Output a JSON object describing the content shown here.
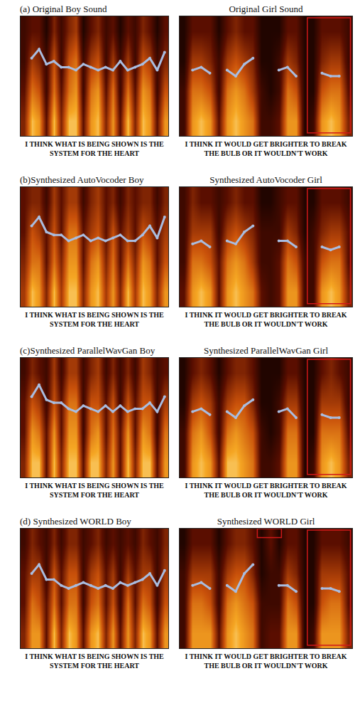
{
  "chart_data": [
    {
      "type": "heatmap",
      "title": "(a) Original Boy Sound",
      "caption": "I THINK WHAT IS BEING SHOWN IS THE SYSTEM FOR THE HEART",
      "xlim": [
        0,
        20
      ],
      "ylim": [
        0,
        4
      ],
      "zlim": [
        0,
        10
      ],
      "tick_labels": false,
      "color": "#a9bde0",
      "cells": [
        [
          4,
          9,
          8,
          3,
          9,
          4,
          9,
          9,
          3,
          8,
          9,
          4,
          8,
          3,
          9,
          4,
          9,
          8,
          3,
          8
        ],
        [
          3,
          7,
          6,
          2,
          7,
          3,
          7,
          8,
          2,
          7,
          8,
          3,
          7,
          2,
          7,
          3,
          8,
          7,
          2,
          6
        ],
        [
          2,
          5,
          4,
          2,
          6,
          2,
          6,
          7,
          2,
          5,
          6,
          2,
          5,
          2,
          5,
          2,
          6,
          5,
          2,
          4
        ],
        [
          2,
          3,
          3,
          1,
          4,
          2,
          4,
          5,
          1,
          3,
          4,
          2,
          3,
          1,
          3,
          2,
          4,
          3,
          1,
          3
        ]
      ],
      "pitch": [
        null,
        2.6,
        2.9,
        2.4,
        2.5,
        2.3,
        2.3,
        2.2,
        2.4,
        2.3,
        2.2,
        2.3,
        2.2,
        2.5,
        2.2,
        2.3,
        2.4,
        2.6,
        2.2,
        2.8
      ],
      "highlights": []
    },
    {
      "type": "heatmap",
      "title": "Original Girl Sound",
      "caption": "I THINK IT WOULD GET BRIGHTER TO BREAK THE BULB OR IT WOULDN'T WORK",
      "xlim": [
        0,
        20
      ],
      "ylim": [
        0,
        4
      ],
      "zlim": [
        0,
        10
      ],
      "tick_labels": false,
      "color": "#a9bde0",
      "cells": [
        [
          2,
          8,
          9,
          8,
          3,
          8,
          9,
          8,
          7,
          2,
          2,
          3,
          8,
          8,
          1,
          2,
          8,
          9,
          8,
          4
        ],
        [
          2,
          7,
          7,
          6,
          2,
          7,
          8,
          7,
          5,
          2,
          1,
          2,
          7,
          6,
          1,
          1,
          6,
          7,
          7,
          3
        ],
        [
          1,
          5,
          5,
          4,
          2,
          5,
          6,
          5,
          4,
          1,
          1,
          2,
          5,
          4,
          1,
          1,
          4,
          5,
          5,
          2
        ],
        [
          1,
          3,
          3,
          3,
          1,
          3,
          4,
          3,
          3,
          1,
          1,
          1,
          3,
          3,
          1,
          1,
          3,
          3,
          3,
          2
        ]
      ],
      "pitch": [
        null,
        2.2,
        2.3,
        2.1,
        null,
        2.2,
        2.0,
        2.4,
        2.6,
        null,
        null,
        2.2,
        2.3,
        2.0,
        null,
        null,
        2.1,
        2.0,
        2.0,
        null
      ],
      "highlights": [
        [
          14.8,
          19.8,
          0.1,
          3.95
        ]
      ]
    },
    {
      "type": "heatmap",
      "title": "(b)Synthesized AutoVocoder Boy",
      "caption": "I THINK WHAT IS BEING SHOWN IS THE SYSTEM FOR THE HEART",
      "xlim": [
        0,
        20
      ],
      "ylim": [
        0,
        4
      ],
      "zlim": [
        0,
        10
      ],
      "tick_labels": false,
      "color": "#a9bde0",
      "cells": [
        [
          5,
          9,
          8,
          4,
          9,
          5,
          9,
          9,
          4,
          8,
          9,
          5,
          8,
          4,
          9,
          5,
          9,
          8,
          4,
          8
        ],
        [
          4,
          7,
          7,
          3,
          7,
          4,
          8,
          8,
          3,
          7,
          8,
          4,
          7,
          3,
          7,
          4,
          8,
          7,
          3,
          6
        ],
        [
          3,
          6,
          5,
          3,
          6,
          3,
          7,
          7,
          3,
          5,
          6,
          3,
          6,
          3,
          5,
          3,
          6,
          5,
          3,
          5
        ],
        [
          3,
          4,
          4,
          2,
          5,
          3,
          5,
          5,
          2,
          4,
          5,
          3,
          4,
          2,
          4,
          3,
          4,
          4,
          2,
          4
        ]
      ],
      "pitch": [
        null,
        2.7,
        3.0,
        2.5,
        2.4,
        2.4,
        2.2,
        2.3,
        2.4,
        2.2,
        2.3,
        2.2,
        2.3,
        2.4,
        2.2,
        2.2,
        2.4,
        2.7,
        2.3,
        3.0
      ],
      "highlights": []
    },
    {
      "type": "heatmap",
      "title": "Synthesized AutoVocoder Girl",
      "caption": "I THINK IT WOULD GET BRIGHTER TO BREAK THE BULB OR IT WOULDN'T WORK",
      "xlim": [
        0,
        20
      ],
      "ylim": [
        0,
        4
      ],
      "zlim": [
        0,
        10
      ],
      "tick_labels": false,
      "color": "#a9bde0",
      "cells": [
        [
          3,
          8,
          9,
          8,
          3,
          8,
          9,
          8,
          7,
          3,
          2,
          3,
          8,
          8,
          2,
          2,
          8,
          9,
          8,
          4
        ],
        [
          2,
          7,
          7,
          6,
          3,
          7,
          8,
          7,
          5,
          2,
          2,
          3,
          7,
          6,
          2,
          2,
          6,
          7,
          7,
          3
        ],
        [
          2,
          5,
          5,
          5,
          2,
          5,
          6,
          5,
          4,
          2,
          2,
          2,
          5,
          4,
          1,
          2,
          4,
          5,
          5,
          3
        ],
        [
          2,
          4,
          3,
          3,
          2,
          3,
          4,
          3,
          3,
          1,
          1,
          2,
          3,
          3,
          1,
          1,
          3,
          3,
          3,
          2
        ]
      ],
      "pitch": [
        null,
        2.1,
        2.2,
        2.0,
        null,
        2.2,
        2.1,
        2.5,
        2.7,
        null,
        null,
        2.2,
        2.2,
        2.0,
        null,
        null,
        2.0,
        1.9,
        2.0,
        null
      ],
      "highlights": [
        [
          14.8,
          19.8,
          0.1,
          3.95
        ]
      ]
    },
    {
      "type": "heatmap",
      "title": "(c)Synthesized ParallelWavGan Boy",
      "caption": "I THINK WHAT IS BEING SHOWN IS THE SYSTEM FOR THE HEART",
      "xlim": [
        0,
        20
      ],
      "ylim": [
        0,
        4
      ],
      "zlim": [
        0,
        10
      ],
      "tick_labels": false,
      "color": "#a9bde0",
      "cells": [
        [
          4,
          9,
          9,
          3,
          9,
          4,
          9,
          9,
          3,
          9,
          9,
          4,
          8,
          3,
          9,
          4,
          9,
          9,
          3,
          8
        ],
        [
          3,
          8,
          7,
          3,
          8,
          3,
          8,
          8,
          2,
          7,
          8,
          3,
          7,
          3,
          8,
          3,
          8,
          7,
          2,
          7
        ],
        [
          3,
          6,
          5,
          2,
          6,
          3,
          7,
          7,
          2,
          6,
          6,
          3,
          6,
          2,
          6,
          3,
          6,
          6,
          2,
          5
        ],
        [
          2,
          4,
          3,
          2,
          5,
          2,
          5,
          5,
          2,
          4,
          5,
          2,
          4,
          2,
          4,
          2,
          5,
          4,
          2,
          3
        ]
      ],
      "pitch": [
        null,
        2.7,
        3.1,
        2.6,
        2.5,
        2.5,
        2.3,
        2.2,
        2.4,
        2.3,
        2.2,
        2.4,
        2.2,
        2.4,
        2.2,
        2.3,
        2.3,
        2.5,
        2.2,
        2.7
      ],
      "highlights": []
    },
    {
      "type": "heatmap",
      "title": "Synthesized ParallelWavGan Girl",
      "caption": "I THINK IT WOULD GET BRIGHTER TO BREAK THE BULB OR IT WOULDN'T WORK",
      "xlim": [
        0,
        20
      ],
      "ylim": [
        0,
        4
      ],
      "zlim": [
        0,
        10
      ],
      "tick_labels": false,
      "color": "#a9bde0",
      "cells": [
        [
          2,
          8,
          9,
          8,
          3,
          9,
          9,
          8,
          7,
          2,
          2,
          3,
          8,
          8,
          1,
          2,
          8,
          9,
          8,
          4
        ],
        [
          2,
          7,
          8,
          6,
          2,
          7,
          8,
          7,
          6,
          2,
          1,
          2,
          7,
          7,
          1,
          1,
          7,
          7,
          7,
          3
        ],
        [
          1,
          5,
          6,
          5,
          2,
          5,
          6,
          6,
          4,
          1,
          1,
          2,
          5,
          5,
          1,
          1,
          5,
          5,
          5,
          2
        ],
        [
          1,
          3,
          4,
          3,
          1,
          3,
          4,
          4,
          3,
          1,
          1,
          1,
          3,
          3,
          1,
          1,
          3,
          4,
          3,
          2
        ]
      ],
      "pitch": [
        null,
        2.2,
        2.3,
        2.1,
        null,
        2.2,
        2.0,
        2.4,
        2.6,
        null,
        null,
        2.2,
        2.3,
        2.0,
        null,
        null,
        2.1,
        2.0,
        2.0,
        null
      ],
      "highlights": [
        [
          14.8,
          19.8,
          0.1,
          3.95
        ]
      ]
    },
    {
      "type": "heatmap",
      "title": "(d) Synthesized WORLD Boy",
      "caption": "I THINK WHAT IS BEING SHOWN IS THE SYSTEM FOR THE HEART",
      "xlim": [
        0,
        20
      ],
      "ylim": [
        0,
        4
      ],
      "zlim": [
        0,
        10
      ],
      "tick_labels": false,
      "color": "#a9bde0",
      "cells": [
        [
          4,
          8,
          8,
          3,
          9,
          4,
          9,
          8,
          3,
          8,
          9,
          4,
          8,
          3,
          8,
          4,
          9,
          8,
          3,
          8
        ],
        [
          3,
          7,
          6,
          3,
          7,
          3,
          7,
          7,
          2,
          6,
          7,
          3,
          6,
          2,
          7,
          3,
          7,
          6,
          2,
          6
        ],
        [
          3,
          5,
          5,
          2,
          6,
          3,
          6,
          6,
          2,
          5,
          6,
          3,
          5,
          2,
          5,
          3,
          5,
          5,
          2,
          5
        ],
        [
          2,
          4,
          3,
          2,
          4,
          2,
          4,
          4,
          2,
          3,
          4,
          2,
          3,
          2,
          3,
          2,
          4,
          3,
          2,
          4
        ]
      ],
      "pitch": [
        null,
        2.5,
        2.8,
        2.3,
        2.3,
        2.1,
        2.0,
        2.1,
        2.2,
        2.1,
        2.0,
        2.1,
        2.0,
        2.2,
        2.1,
        2.2,
        2.3,
        2.5,
        2.1,
        2.6
      ],
      "highlights": []
    },
    {
      "type": "heatmap",
      "title": "Synthesized WORLD Girl",
      "caption": "I THINK IT WOULD GET BRIGHTER TO BREAK THE BULB OR IT WOULDN'T WORK",
      "xlim": [
        0,
        20
      ],
      "ylim": [
        0,
        4
      ],
      "zlim": [
        0,
        10
      ],
      "tick_labels": false,
      "color": "#a9bde0",
      "cells": [
        [
          2,
          8,
          8,
          8,
          3,
          8,
          9,
          8,
          7,
          2,
          3,
          3,
          8,
          8,
          1,
          2,
          8,
          8,
          8,
          4
        ],
        [
          2,
          7,
          7,
          6,
          2,
          7,
          8,
          7,
          6,
          2,
          2,
          2,
          7,
          6,
          1,
          1,
          6,
          7,
          7,
          3
        ],
        [
          2,
          5,
          5,
          5,
          2,
          5,
          6,
          6,
          4,
          1,
          2,
          2,
          5,
          4,
          1,
          1,
          5,
          5,
          5,
          3
        ],
        [
          1,
          3,
          3,
          3,
          1,
          3,
          4,
          4,
          3,
          1,
          3,
          1,
          3,
          3,
          1,
          1,
          3,
          3,
          3,
          2
        ]
      ],
      "pitch": [
        null,
        2.1,
        2.2,
        2.0,
        null,
        2.1,
        1.9,
        2.5,
        2.8,
        null,
        null,
        2.1,
        2.1,
        1.9,
        null,
        null,
        2.0,
        2.0,
        1.9,
        null
      ],
      "highlights": [
        [
          9.0,
          11.8,
          3.7,
          4.0
        ],
        [
          14.8,
          19.8,
          0.1,
          3.95
        ]
      ]
    }
  ]
}
